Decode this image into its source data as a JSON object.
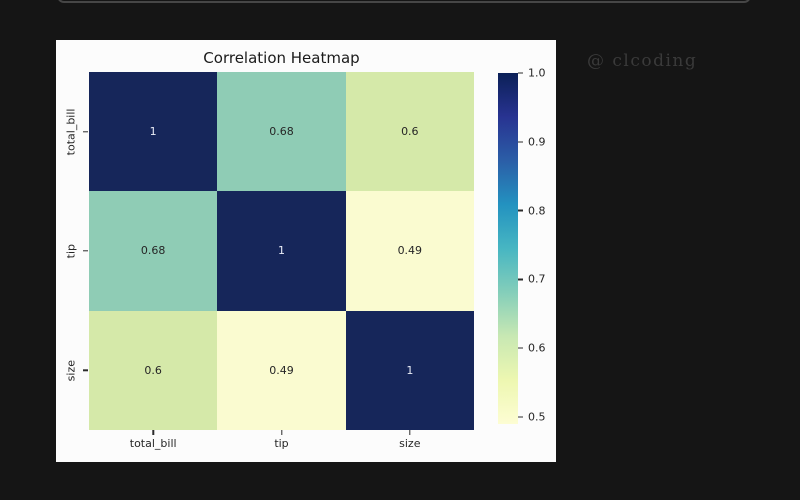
{
  "page": {
    "background": "#151515",
    "watermark": "@ clcoding",
    "top_element_edge_color": "#464646"
  },
  "figure": {
    "background": "#fcfcfc"
  },
  "chart_data": {
    "type": "heatmap",
    "title": "Correlation Heatmap",
    "categories": [
      "total_bill",
      "tip",
      "size"
    ],
    "matrix": [
      [
        1,
        0.68,
        0.6
      ],
      [
        0.68,
        1,
        0.49
      ],
      [
        0.6,
        0.49,
        1
      ]
    ],
    "cell_labels": [
      [
        "1",
        "0.68",
        "0.6"
      ],
      [
        "0.68",
        "1",
        "0.49"
      ],
      [
        "0.6",
        "0.49",
        "1"
      ]
    ],
    "cell_colors": [
      [
        "#16265a",
        "#8fccb5",
        "#d5e9a9"
      ],
      [
        "#8fccb5",
        "#16265a",
        "#fafbd0"
      ],
      [
        "#d5e9a9",
        "#fafbd0",
        "#16265a"
      ]
    ],
    "annot_color_light": "#eaedf7",
    "annot_color_dark": "#262626",
    "axis_text_color": "#262626",
    "colormap": "YlGnBu",
    "colorbar": {
      "min": 0.49,
      "max": 1.0,
      "tick_values": [
        1.0,
        0.9,
        0.8,
        0.7,
        0.6,
        0.5
      ],
      "tick_labels": [
        "1.0",
        "0.9",
        "0.8",
        "0.7",
        "0.6",
        "0.5"
      ],
      "gradient_stops_top_to_bottom": [
        "#0b2057",
        "#283391",
        "#2b5ea7",
        "#2392c0",
        "#47b6c2",
        "#84ceba",
        "#c8e8b3",
        "#edf7b1",
        "#fdfdd3"
      ],
      "position": "right"
    },
    "legend": false,
    "grid": false
  }
}
